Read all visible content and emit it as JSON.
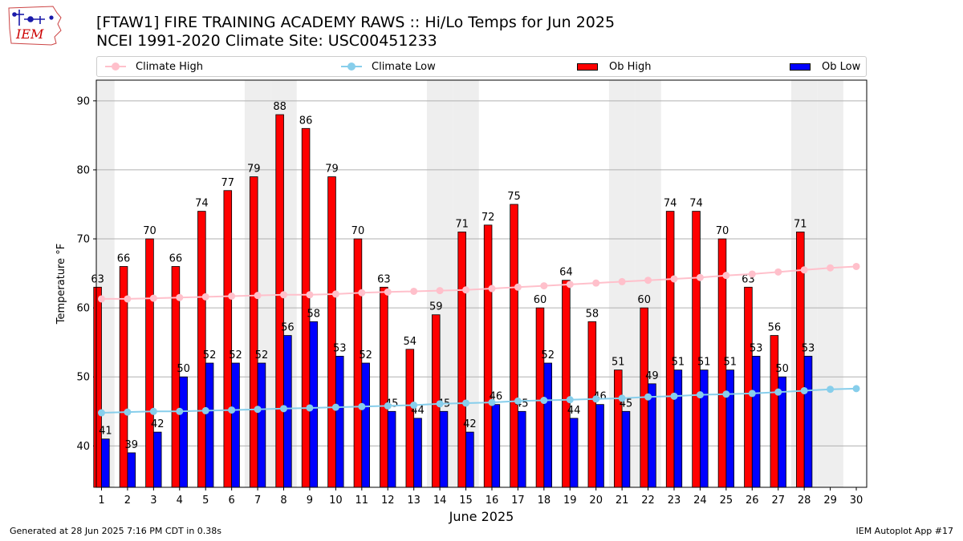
{
  "page": {
    "title_line1": "[FTAW1] FIRE TRAINING ACADEMY RAWS :: Hi/Lo Temps for Jun 2025",
    "title_line2": "NCEI 1991-2020 Climate Site: USC00451233",
    "logo_text": "IEM",
    "footer_left": "Generated at 28 Jun 2025 7:16 PM CDT in 0.38s",
    "footer_right": "IEM Autoplot App #17"
  },
  "legend": {
    "climate_high": "Climate High",
    "climate_low": "Climate Low",
    "ob_high": "Ob High",
    "ob_low": "Ob Low"
  },
  "colors": {
    "climate_high": "#ffc0cb",
    "climate_low": "#87ceeb",
    "ob_high": "#ff0000",
    "ob_low": "#0000ff",
    "weekend_shade": "#eeeeee",
    "grid": "#b0b0b0",
    "logo": "#cc0000"
  },
  "chart_data": {
    "type": "bar",
    "xlabel": "June 2025",
    "ylabel": "Temperature °F",
    "ylim": [
      34,
      93
    ],
    "yticks": [
      40,
      50,
      60,
      70,
      80,
      90
    ],
    "grid": "horizontal",
    "legend_placement": "top",
    "categories": [
      "1",
      "2",
      "3",
      "4",
      "5",
      "6",
      "7",
      "8",
      "9",
      "10",
      "11",
      "12",
      "13",
      "14",
      "15",
      "16",
      "17",
      "18",
      "19",
      "20",
      "21",
      "22",
      "23",
      "24",
      "25",
      "26",
      "27",
      "28",
      "29",
      "30"
    ],
    "shaded_days": [
      1,
      7,
      8,
      14,
      15,
      21,
      22,
      28,
      29
    ],
    "series": [
      {
        "name": "Ob High",
        "kind": "bar",
        "values": [
          63,
          66,
          70,
          66,
          74,
          77,
          79,
          88,
          86,
          79,
          70,
          63,
          54,
          59,
          71,
          72,
          75,
          60,
          64,
          58,
          51,
          60,
          74,
          74,
          70,
          63,
          56,
          71,
          null,
          null
        ]
      },
      {
        "name": "Ob Low",
        "kind": "bar",
        "values": [
          41,
          39,
          42,
          50,
          52,
          52,
          52,
          56,
          58,
          53,
          52,
          45,
          44,
          45,
          42,
          46,
          45,
          52,
          44,
          46,
          45,
          49,
          51,
          51,
          51,
          53,
          50,
          53,
          null,
          null
        ]
      },
      {
        "name": "Climate High",
        "kind": "line",
        "values": [
          61.3,
          61.3,
          61.4,
          61.5,
          61.6,
          61.7,
          61.8,
          61.9,
          61.9,
          62.0,
          62.2,
          62.3,
          62.4,
          62.5,
          62.6,
          62.8,
          63.0,
          63.2,
          63.4,
          63.6,
          63.8,
          64.0,
          64.2,
          64.4,
          64.7,
          64.9,
          65.2,
          65.5,
          65.8,
          66.0
        ]
      },
      {
        "name": "Climate Low",
        "kind": "line",
        "values": [
          44.8,
          44.9,
          45.0,
          45.0,
          45.1,
          45.2,
          45.3,
          45.4,
          45.5,
          45.6,
          45.7,
          45.8,
          45.9,
          46.1,
          46.2,
          46.3,
          46.5,
          46.6,
          46.7,
          46.8,
          46.9,
          47.1,
          47.2,
          47.4,
          47.5,
          47.6,
          47.8,
          48.0,
          48.2,
          48.3
        ]
      }
    ]
  }
}
